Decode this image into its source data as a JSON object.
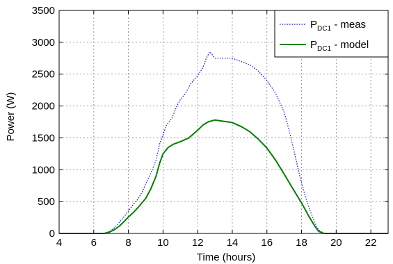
{
  "chart_data": {
    "type": "line",
    "title": "",
    "xlabel": "Time (hours)",
    "ylabel": "Power (W)",
    "xlim": [
      4,
      23
    ],
    "ylim": [
      0,
      3500
    ],
    "xticks": [
      4,
      6,
      8,
      10,
      12,
      14,
      16,
      18,
      20,
      22
    ],
    "yticks": [
      0,
      500,
      1000,
      1500,
      2000,
      2500,
      3000,
      3500
    ],
    "grid": true,
    "legend": "top-right",
    "series": [
      {
        "legend_main": "P",
        "legend_sub": "DC1",
        "legend_tail": " - meas",
        "color": "#0000ff",
        "style": "dotted",
        "points": [
          [
            4,
            0
          ],
          [
            6.6,
            0
          ],
          [
            6.9,
            30
          ],
          [
            7.2,
            90
          ],
          [
            7.5,
            180
          ],
          [
            7.8,
            280
          ],
          [
            8.0,
            350
          ],
          [
            8.2,
            430
          ],
          [
            8.5,
            520
          ],
          [
            8.8,
            650
          ],
          [
            9.0,
            780
          ],
          [
            9.3,
            950
          ],
          [
            9.6,
            1150
          ],
          [
            9.8,
            1400
          ],
          [
            10.0,
            1550
          ],
          [
            10.2,
            1700
          ],
          [
            10.5,
            1800
          ],
          [
            10.8,
            2000
          ],
          [
            11.0,
            2100
          ],
          [
            11.3,
            2200
          ],
          [
            11.6,
            2350
          ],
          [
            12.0,
            2480
          ],
          [
            12.3,
            2600
          ],
          [
            12.5,
            2750
          ],
          [
            12.7,
            2850
          ],
          [
            13.0,
            2750
          ],
          [
            13.5,
            2750
          ],
          [
            14.0,
            2750
          ],
          [
            14.5,
            2700
          ],
          [
            15.0,
            2650
          ],
          [
            15.5,
            2550
          ],
          [
            16.0,
            2400
          ],
          [
            16.5,
            2200
          ],
          [
            17.0,
            1900
          ],
          [
            17.3,
            1600
          ],
          [
            17.6,
            1250
          ],
          [
            17.9,
            900
          ],
          [
            18.2,
            600
          ],
          [
            18.5,
            350
          ],
          [
            18.8,
            150
          ],
          [
            19.0,
            50
          ],
          [
            19.3,
            0
          ],
          [
            23,
            0
          ]
        ]
      },
      {
        "legend_main": "P",
        "legend_sub": "DC1",
        "legend_tail": " - model",
        "color": "#008000",
        "style": "solid",
        "points": [
          [
            4,
            0
          ],
          [
            6.6,
            0
          ],
          [
            6.9,
            20
          ],
          [
            7.2,
            60
          ],
          [
            7.5,
            120
          ],
          [
            7.8,
            200
          ],
          [
            8.0,
            260
          ],
          [
            8.3,
            330
          ],
          [
            8.6,
            420
          ],
          [
            9.0,
            550
          ],
          [
            9.3,
            700
          ],
          [
            9.6,
            900
          ],
          [
            9.8,
            1100
          ],
          [
            10.0,
            1250
          ],
          [
            10.3,
            1350
          ],
          [
            10.6,
            1400
          ],
          [
            11.0,
            1440
          ],
          [
            11.5,
            1500
          ],
          [
            12.0,
            1620
          ],
          [
            12.3,
            1700
          ],
          [
            12.6,
            1750
          ],
          [
            13.0,
            1780
          ],
          [
            13.5,
            1760
          ],
          [
            14.0,
            1740
          ],
          [
            14.5,
            1680
          ],
          [
            15.0,
            1600
          ],
          [
            15.5,
            1480
          ],
          [
            16.0,
            1340
          ],
          [
            16.5,
            1150
          ],
          [
            17.0,
            930
          ],
          [
            17.5,
            700
          ],
          [
            18.0,
            480
          ],
          [
            18.4,
            280
          ],
          [
            18.8,
            100
          ],
          [
            19.0,
            30
          ],
          [
            19.3,
            0
          ],
          [
            23,
            0
          ]
        ]
      }
    ]
  }
}
